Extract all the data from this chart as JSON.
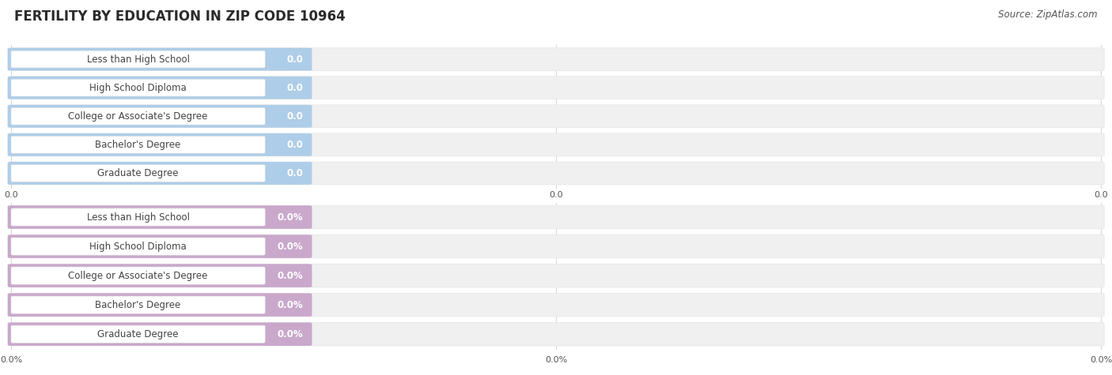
{
  "title": "FERTILITY BY EDUCATION IN ZIP CODE 10964",
  "source": "Source: ZipAtlas.com",
  "top_section": {
    "categories": [
      "Less than High School",
      "High School Diploma",
      "College or Associate's Degree",
      "Bachelor's Degree",
      "Graduate Degree"
    ],
    "values": [
      0.0,
      0.0,
      0.0,
      0.0,
      0.0
    ],
    "bar_color": "#aecde8",
    "value_labels": [
      "0.0",
      "0.0",
      "0.0",
      "0.0",
      "0.0"
    ],
    "axis_labels": [
      "0.0",
      "0.0",
      "0.0"
    ]
  },
  "bottom_section": {
    "categories": [
      "Less than High School",
      "High School Diploma",
      "College or Associate's Degree",
      "Bachelor's Degree",
      "Graduate Degree"
    ],
    "values": [
      0.0,
      0.0,
      0.0,
      0.0,
      0.0
    ],
    "bar_color": "#c9a8cc",
    "value_labels": [
      "0.0%",
      "0.0%",
      "0.0%",
      "0.0%",
      "0.0%"
    ],
    "axis_labels": [
      "0.0%",
      "0.0%",
      "0.0%"
    ]
  },
  "bg_color": "#ffffff",
  "bar_bg_color": "#f0f0f0",
  "bar_sep_color": "#e8e8e8",
  "grid_color": "#d8d8d8",
  "title_fontsize": 12,
  "label_fontsize": 8.5,
  "axis_fontsize": 8,
  "source_fontsize": 8.5
}
